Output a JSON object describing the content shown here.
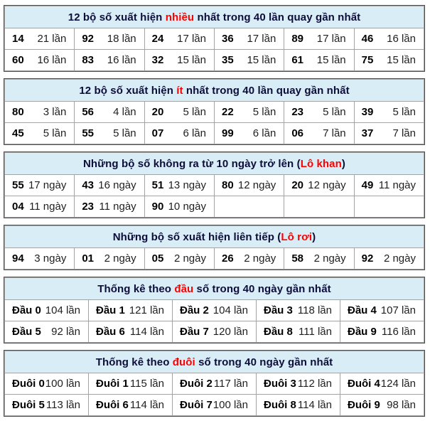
{
  "colors": {
    "header_bg": "#d9edf7",
    "header_text": "#0d0d3a",
    "highlight_red": "#ff0000",
    "outer_border": "#4e4e4e",
    "inner_border": "#a3a3a3"
  },
  "tables": [
    {
      "id": "most-frequent",
      "cols": 6,
      "title": [
        {
          "t": "12 bộ số xuất hiện "
        },
        {
          "t": "nhiều",
          "red": true
        },
        {
          "t": " nhất trong 40 lần quay gần nhất"
        }
      ],
      "rows": [
        [
          {
            "n": "14",
            "v": "21 lần"
          },
          {
            "n": "92",
            "v": "18 lần"
          },
          {
            "n": "24",
            "v": "17 lần"
          },
          {
            "n": "36",
            "v": "17 lần"
          },
          {
            "n": "89",
            "v": "17 lần"
          },
          {
            "n": "46",
            "v": "16 lần"
          }
        ],
        [
          {
            "n": "60",
            "v": "16 lần"
          },
          {
            "n": "83",
            "v": "16 lần"
          },
          {
            "n": "32",
            "v": "15 lần"
          },
          {
            "n": "35",
            "v": "15 lần"
          },
          {
            "n": "61",
            "v": "15 lần"
          },
          {
            "n": "75",
            "v": "15 lần"
          }
        ]
      ]
    },
    {
      "id": "least-frequent",
      "cols": 6,
      "title": [
        {
          "t": "12 bộ số xuất hiện "
        },
        {
          "t": "ít",
          "red": true
        },
        {
          "t": " nhất trong 40 lần quay gần nhất"
        }
      ],
      "rows": [
        [
          {
            "n": "80",
            "v": "3 lần"
          },
          {
            "n": "56",
            "v": "4 lần"
          },
          {
            "n": "20",
            "v": "5 lần"
          },
          {
            "n": "22",
            "v": "5 lần"
          },
          {
            "n": "23",
            "v": "5 lần"
          },
          {
            "n": "39",
            "v": "5 lần"
          }
        ],
        [
          {
            "n": "45",
            "v": "5 lần"
          },
          {
            "n": "55",
            "v": "5 lần"
          },
          {
            "n": "07",
            "v": "6 lần"
          },
          {
            "n": "99",
            "v": "6 lần"
          },
          {
            "n": "06",
            "v": "7 lần"
          },
          {
            "n": "37",
            "v": "7 lần"
          }
        ]
      ]
    },
    {
      "id": "lo-khan",
      "cols": 6,
      "title": [
        {
          "t": "Những bộ số không ra từ 10 ngày trở lên ("
        },
        {
          "t": "Lô khan",
          "red": true
        },
        {
          "t": ")"
        }
      ],
      "rows": [
        [
          {
            "n": "55",
            "v": "17 ngày"
          },
          {
            "n": "43",
            "v": "16 ngày"
          },
          {
            "n": "51",
            "v": "13 ngày"
          },
          {
            "n": "80",
            "v": "12 ngày"
          },
          {
            "n": "20",
            "v": "12 ngày"
          },
          {
            "n": "49",
            "v": "11 ngày"
          }
        ],
        [
          {
            "n": "04",
            "v": "11 ngày"
          },
          {
            "n": "23",
            "v": "11 ngày"
          },
          {
            "n": "90",
            "v": "10 ngày"
          },
          {
            "n": "",
            "v": ""
          },
          {
            "n": "",
            "v": ""
          },
          {
            "n": "",
            "v": ""
          }
        ]
      ]
    },
    {
      "id": "lo-roi",
      "cols": 6,
      "title": [
        {
          "t": "Những bộ số xuất hiện liên tiếp ("
        },
        {
          "t": "Lô rơi",
          "red": true
        },
        {
          "t": ")"
        }
      ],
      "rows": [
        [
          {
            "n": "94",
            "v": "3 ngày"
          },
          {
            "n": "01",
            "v": "2 ngày"
          },
          {
            "n": "05",
            "v": "2 ngày"
          },
          {
            "n": "26",
            "v": "2 ngày"
          },
          {
            "n": "58",
            "v": "2 ngày"
          },
          {
            "n": "92",
            "v": "2 ngày"
          }
        ]
      ]
    },
    {
      "id": "head-digit-stats",
      "cols": 5,
      "title": [
        {
          "t": "Thống kê theo "
        },
        {
          "t": "đầu",
          "red": true
        },
        {
          "t": " số trong 40 ngày gần nhất"
        }
      ],
      "rows": [
        [
          {
            "n": "Đầu 0",
            "v": "104 lần"
          },
          {
            "n": "Đầu 1",
            "v": "121 lần"
          },
          {
            "n": "Đầu 2",
            "v": "104 lần"
          },
          {
            "n": "Đầu 3",
            "v": "118 lần"
          },
          {
            "n": "Đầu 4",
            "v": "107 lần"
          }
        ],
        [
          {
            "n": "Đầu 5",
            "v": "92 lần"
          },
          {
            "n": "Đầu 6",
            "v": "114 lần"
          },
          {
            "n": "Đầu 7",
            "v": "120 lần"
          },
          {
            "n": "Đầu 8",
            "v": "111 lần"
          },
          {
            "n": "Đầu 9",
            "v": "116 lần"
          }
        ]
      ]
    },
    {
      "id": "tail-digit-stats",
      "cols": 5,
      "title": [
        {
          "t": "Thống kê theo "
        },
        {
          "t": "đuôi",
          "red": true
        },
        {
          "t": " số trong 40 ngày gần nhất"
        }
      ],
      "rows": [
        [
          {
            "n": "Đuôi 0",
            "v": "100 lần"
          },
          {
            "n": "Đuôi 1",
            "v": "115 lần"
          },
          {
            "n": "Đuôi 2",
            "v": "117 lần"
          },
          {
            "n": "Đuôi 3",
            "v": "112 lần"
          },
          {
            "n": "Đuôi 4",
            "v": "124 lần"
          }
        ],
        [
          {
            "n": "Đuôi 5",
            "v": "113 lần"
          },
          {
            "n": "Đuôi 6",
            "v": "114 lần"
          },
          {
            "n": "Đuôi 7",
            "v": "100 lần"
          },
          {
            "n": "Đuôi 8",
            "v": "114 lần"
          },
          {
            "n": "Đuôi 9",
            "v": "98 lần"
          }
        ]
      ]
    }
  ]
}
